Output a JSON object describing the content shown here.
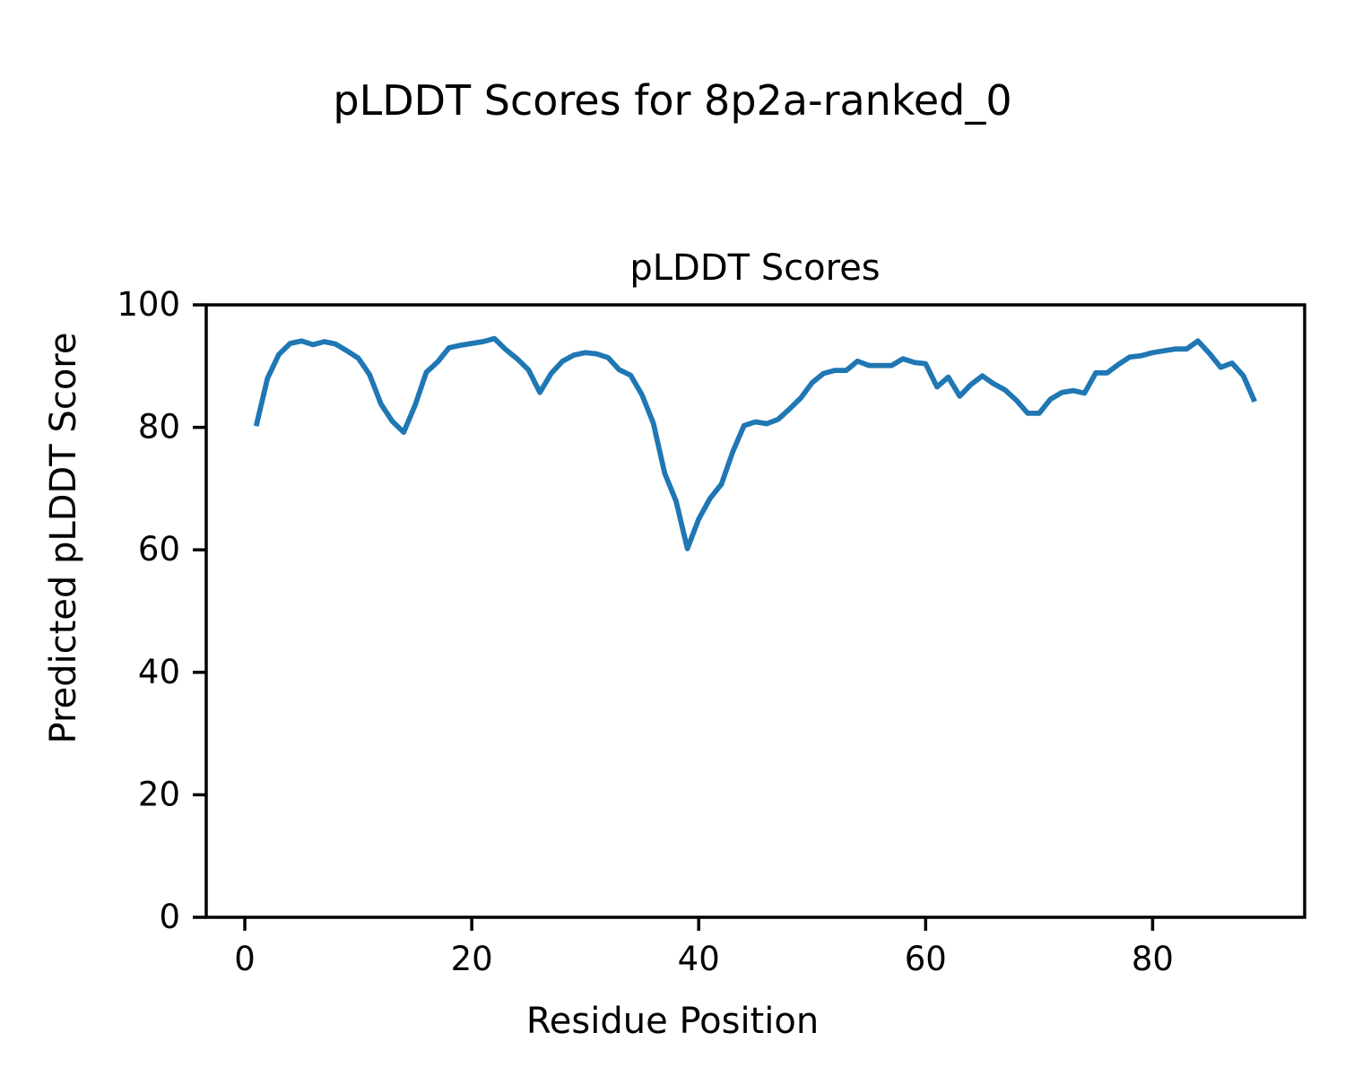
{
  "figure_title": "pLDDT Scores for 8p2a-ranked_0",
  "chart_data": {
    "type": "line",
    "title": "pLDDT Scores",
    "xlabel": "Residue Position",
    "ylabel": "Predicted pLDDT Score",
    "xlim": [
      -3.4,
      93.4
    ],
    "ylim": [
      0,
      100
    ],
    "xticks": [
      0,
      20,
      40,
      60,
      80
    ],
    "yticks": [
      0,
      20,
      40,
      60,
      80,
      100
    ],
    "grid": false,
    "legend": "none",
    "line_color": "#1f77b4",
    "series": [
      {
        "name": "pLDDT",
        "color": "#1f77b4",
        "x": [
          1,
          2,
          3,
          4,
          5,
          6,
          7,
          8,
          9,
          10,
          11,
          12,
          13,
          14,
          15,
          16,
          17,
          18,
          19,
          20,
          21,
          22,
          23,
          24,
          25,
          26,
          27,
          28,
          29,
          30,
          31,
          32,
          33,
          34,
          35,
          36,
          37,
          38,
          39,
          40,
          41,
          42,
          43,
          44,
          45,
          46,
          47,
          48,
          49,
          50,
          51,
          52,
          53,
          54,
          55,
          56,
          57,
          58,
          59,
          60,
          61,
          62,
          63,
          64,
          65,
          66,
          67,
          68,
          69,
          70,
          71,
          72,
          73,
          74,
          75,
          76,
          77,
          78,
          79,
          80,
          81,
          82,
          83,
          84,
          85,
          86,
          87,
          88,
          89
        ],
        "values": [
          80.2,
          88.0,
          91.9,
          93.7,
          94.1,
          93.5,
          94.0,
          93.6,
          92.5,
          91.3,
          88.6,
          83.8,
          81.0,
          79.2,
          83.6,
          89.0,
          90.7,
          93.0,
          93.4,
          93.7,
          94.0,
          94.5,
          92.7,
          91.2,
          89.4,
          85.7,
          88.8,
          90.8,
          91.8,
          92.2,
          92.0,
          91.4,
          89.4,
          88.5,
          85.3,
          80.7,
          72.5,
          68.0,
          60.2,
          65.0,
          68.4,
          70.7,
          76.0,
          80.3,
          80.9,
          80.6,
          81.3,
          83.0,
          84.8,
          87.3,
          88.8,
          89.3,
          89.3,
          90.8,
          90.1,
          90.1,
          90.1,
          91.2,
          90.6,
          90.4,
          86.6,
          88.2,
          85.1,
          87.0,
          88.4,
          87.1,
          86.1,
          84.4,
          82.3,
          82.3,
          84.6,
          85.7,
          86.0,
          85.6,
          88.9,
          88.9,
          90.3,
          91.5,
          91.7,
          92.2,
          92.5,
          92.8,
          92.8,
          94.1,
          92.1,
          89.8,
          90.5,
          88.4,
          84.2
        ]
      }
    ]
  }
}
